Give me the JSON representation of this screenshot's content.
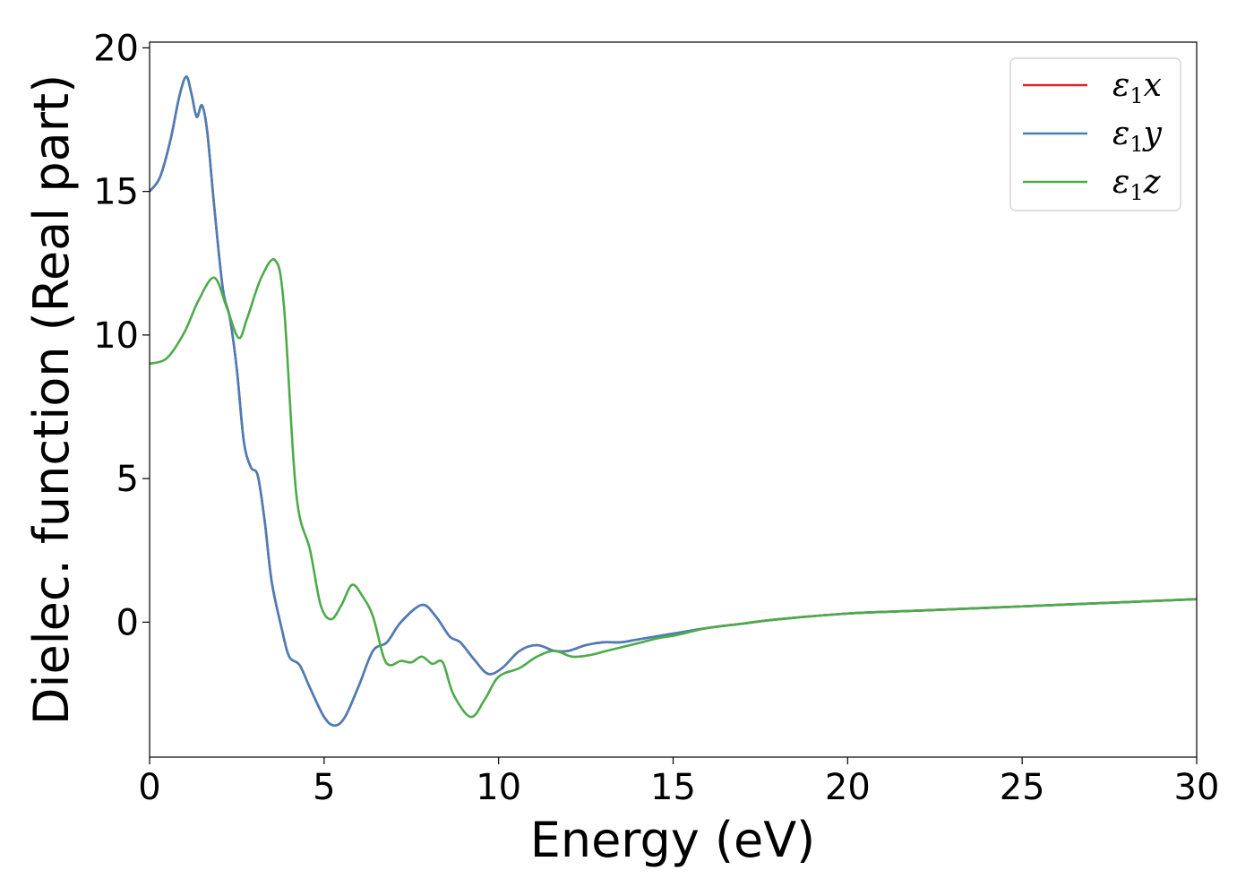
{
  "chart_data": {
    "type": "line",
    "title": "",
    "xlabel": "Energy (eV)",
    "ylabel": "Dielec. function (Real part)",
    "xlim": [
      0,
      30
    ],
    "ylim": [
      -4.7,
      20.2
    ],
    "xticks": [
      0,
      5,
      10,
      15,
      20,
      25,
      30
    ],
    "yticks": [
      0,
      5,
      10,
      15,
      20
    ],
    "xtick_labels": [
      "0",
      "5",
      "10",
      "15",
      "20",
      "25",
      "30"
    ],
    "ytick_labels": [
      "0",
      "5",
      "10",
      "15",
      "20"
    ],
    "grid": false,
    "legend_position": "top-right",
    "series": [
      {
        "name": "ε1x",
        "symbol": "ε",
        "subscript": "1",
        "suffix": "x",
        "color": "#d62728",
        "x": [
          0,
          0.3,
          0.6,
          0.85,
          1.05,
          1.2,
          1.35,
          1.5,
          1.65,
          1.85,
          2.1,
          2.3,
          2.5,
          2.7,
          2.9,
          3.1,
          3.3,
          3.5,
          3.8,
          4.0,
          4.3,
          4.6,
          5.0,
          5.3,
          5.6,
          6.0,
          6.4,
          6.8,
          7.2,
          7.8,
          8.2,
          8.6,
          8.9,
          9.3,
          9.7,
          10.1,
          10.6,
          11.1,
          11.6,
          12.0,
          12.5,
          13.0,
          13.5,
          14.0,
          14.5,
          15.0,
          16.0,
          17.0,
          18.0,
          20.0,
          22.0,
          25.0,
          28.0,
          30.0
        ],
        "y": [
          15.0,
          15.5,
          16.8,
          18.3,
          19.0,
          18.4,
          17.6,
          18.0,
          17.1,
          14.5,
          11.6,
          10.6,
          8.8,
          6.3,
          5.4,
          5.1,
          3.5,
          1.4,
          -0.3,
          -1.2,
          -1.5,
          -2.3,
          -3.3,
          -3.6,
          -3.3,
          -2.2,
          -1.0,
          -0.7,
          0.0,
          0.6,
          0.2,
          -0.5,
          -0.7,
          -1.3,
          -1.8,
          -1.6,
          -1.0,
          -0.8,
          -1.0,
          -1.0,
          -0.8,
          -0.7,
          -0.7,
          -0.6,
          -0.5,
          -0.4,
          -0.2,
          -0.05,
          0.1,
          0.3,
          0.4,
          0.55,
          0.7,
          0.8
        ]
      },
      {
        "name": "ε1y",
        "symbol": "ε",
        "subscript": "1",
        "suffix": "y",
        "color": "#4a7eb8",
        "x": [
          0,
          0.3,
          0.6,
          0.85,
          1.05,
          1.2,
          1.35,
          1.5,
          1.65,
          1.85,
          2.1,
          2.3,
          2.5,
          2.7,
          2.9,
          3.1,
          3.3,
          3.5,
          3.8,
          4.0,
          4.3,
          4.6,
          5.0,
          5.3,
          5.6,
          6.0,
          6.4,
          6.8,
          7.2,
          7.8,
          8.2,
          8.6,
          8.9,
          9.3,
          9.7,
          10.1,
          10.6,
          11.1,
          11.6,
          12.0,
          12.5,
          13.0,
          13.5,
          14.0,
          14.5,
          15.0,
          16.0,
          17.0,
          18.0,
          20.0,
          22.0,
          25.0,
          28.0,
          30.0
        ],
        "y": [
          15.0,
          15.5,
          16.8,
          18.3,
          19.0,
          18.4,
          17.6,
          18.0,
          17.1,
          14.5,
          11.6,
          10.6,
          8.8,
          6.3,
          5.4,
          5.1,
          3.5,
          1.4,
          -0.3,
          -1.2,
          -1.5,
          -2.3,
          -3.3,
          -3.6,
          -3.3,
          -2.2,
          -1.0,
          -0.7,
          0.0,
          0.6,
          0.2,
          -0.5,
          -0.7,
          -1.3,
          -1.8,
          -1.6,
          -1.0,
          -0.8,
          -1.0,
          -1.0,
          -0.8,
          -0.7,
          -0.7,
          -0.6,
          -0.5,
          -0.4,
          -0.2,
          -0.05,
          0.1,
          0.3,
          0.4,
          0.55,
          0.7,
          0.8
        ]
      },
      {
        "name": "ε1z",
        "symbol": "ε",
        "subscript": "1",
        "suffix": "z",
        "color": "#4dab4a",
        "x": [
          0,
          0.5,
          1.0,
          1.4,
          1.85,
          2.2,
          2.55,
          2.8,
          3.2,
          3.6,
          3.85,
          4.2,
          4.6,
          4.9,
          5.2,
          5.5,
          5.8,
          6.1,
          6.4,
          6.7,
          6.9,
          7.2,
          7.5,
          7.8,
          8.1,
          8.4,
          8.7,
          9.2,
          9.6,
          10.0,
          10.6,
          11.1,
          11.6,
          12.1,
          12.6,
          13.1,
          13.6,
          14.1,
          14.6,
          15.1,
          16.0,
          17.0,
          18.0,
          20.0,
          22.0,
          25.0,
          28.0,
          30.0
        ],
        "y": [
          9.0,
          9.2,
          10.1,
          11.2,
          12.0,
          11.0,
          9.9,
          10.6,
          12.0,
          12.6,
          11.0,
          4.5,
          2.5,
          0.6,
          0.1,
          0.6,
          1.3,
          0.9,
          0.2,
          -1.2,
          -1.5,
          -1.35,
          -1.4,
          -1.2,
          -1.45,
          -1.4,
          -2.5,
          -3.3,
          -2.7,
          -1.9,
          -1.6,
          -1.2,
          -1.0,
          -1.2,
          -1.15,
          -1.0,
          -0.85,
          -0.7,
          -0.55,
          -0.45,
          -0.2,
          -0.05,
          0.1,
          0.3,
          0.4,
          0.55,
          0.7,
          0.8
        ]
      }
    ]
  }
}
